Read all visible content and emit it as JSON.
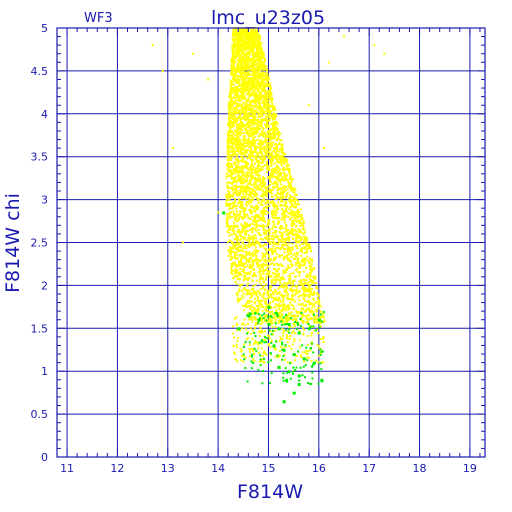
{
  "chart_data": {
    "type": "scatter",
    "title": "lmc_u23z05",
    "corner_label": "WF3",
    "xlabel": "F814W",
    "ylabel": "F814W  chi",
    "xlim": [
      10.8,
      19.3
    ],
    "ylim": [
      0,
      5
    ],
    "xticks": [
      "11",
      "12",
      "13",
      "14",
      "15",
      "16",
      "17",
      "18",
      "19"
    ],
    "yticks": [
      "0",
      "0.5",
      "1",
      "1.5",
      "2",
      "2.5",
      "3",
      "3.5",
      "4",
      "4.5",
      "5"
    ],
    "grid": true,
    "colors": {
      "axis": "#1a1ab0",
      "grid": "#1a1ab0",
      "primary": "#ffff00",
      "secondary": "#00ee00",
      "background": "#ffffff"
    },
    "series": [
      {
        "color": "yellow",
        "description_region": "dense wedge of points",
        "upper_edge": [
          [
            14.35,
            5.0
          ],
          [
            14.8,
            5.0
          ],
          [
            15.05,
            4.3
          ],
          [
            15.3,
            3.6
          ],
          [
            15.6,
            3.0
          ],
          [
            15.85,
            2.4
          ],
          [
            16.0,
            1.9
          ],
          [
            16.15,
            1.55
          ]
        ],
        "lower_edge": [
          [
            14.3,
            5.0
          ],
          [
            14.2,
            4.0
          ],
          [
            14.15,
            3.0
          ],
          [
            14.2,
            2.3
          ],
          [
            14.4,
            1.8
          ],
          [
            14.8,
            1.5
          ],
          [
            15.3,
            1.35
          ],
          [
            15.9,
            1.3
          ]
        ],
        "outliers": [
          [
            12.7,
            4.8
          ],
          [
            12.9,
            4.5
          ],
          [
            13.1,
            3.6
          ],
          [
            13.5,
            4.7
          ],
          [
            13.8,
            4.4
          ],
          [
            16.2,
            4.6
          ],
          [
            16.5,
            4.9
          ],
          [
            17.1,
            4.8
          ],
          [
            17.3,
            4.7
          ],
          [
            16.1,
            3.6
          ],
          [
            15.8,
            4.1
          ],
          [
            13.3,
            2.5
          ],
          [
            14.0,
            2.85
          ]
        ]
      },
      {
        "color": "green",
        "points": [
          [
            14.6,
            1.65
          ],
          [
            14.8,
            1.6
          ],
          [
            15.0,
            1.55
          ],
          [
            15.2,
            1.5
          ],
          [
            15.4,
            1.55
          ],
          [
            15.6,
            1.45
          ],
          [
            15.8,
            1.5
          ],
          [
            16.0,
            1.6
          ],
          [
            15.1,
            1.3
          ],
          [
            15.3,
            1.25
          ],
          [
            15.5,
            1.2
          ],
          [
            15.7,
            1.15
          ],
          [
            15.9,
            1.1
          ],
          [
            15.2,
            1.05
          ],
          [
            15.4,
            1.0
          ],
          [
            15.6,
            0.95
          ],
          [
            15.35,
            0.9
          ],
          [
            15.6,
            0.85
          ],
          [
            15.5,
            0.75
          ],
          [
            15.3,
            0.65
          ],
          [
            14.4,
            1.5
          ],
          [
            16.05,
            0.9
          ],
          [
            14.1,
            2.85
          ],
          [
            15.0,
            1.75
          ]
        ]
      }
    ]
  }
}
